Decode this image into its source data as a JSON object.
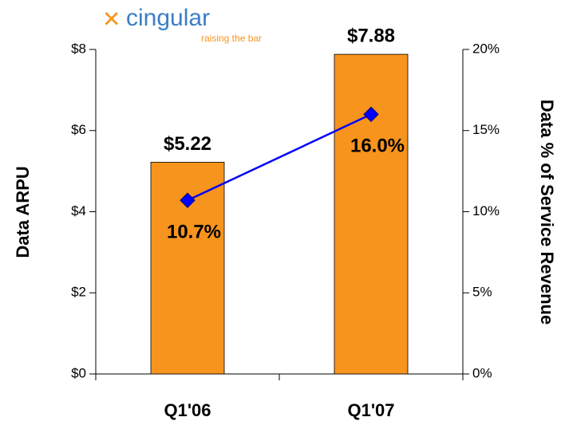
{
  "chart_data": {
    "type": "bar",
    "logo": {
      "name": "cingular",
      "tagline": "raising the bar"
    },
    "categories": [
      "Q1'06",
      "Q1'07"
    ],
    "series": [
      {
        "type": "bar",
        "color": "#f7941d",
        "values": [
          5.22,
          7.88
        ],
        "value_labels": [
          "$5.22",
          "$7.88"
        ]
      },
      {
        "type": "line",
        "axis": "y2",
        "color": "#0000ff",
        "values": [
          10.7,
          16.0
        ],
        "value_labels": [
          "10.7%",
          "16.0%"
        ]
      }
    ],
    "ylabel": "Data ARPU",
    "y2label": "Data % of Service Revenue",
    "ylim": [
      0,
      8
    ],
    "yticks": [
      {
        "value": 0,
        "label": "$0"
      },
      {
        "value": 2,
        "label": "$2"
      },
      {
        "value": 4,
        "label": "$4"
      },
      {
        "value": 6,
        "label": "$6"
      },
      {
        "value": 8,
        "label": "$8"
      }
    ],
    "y2lim": [
      0,
      20
    ],
    "y2ticks": [
      {
        "value": 0,
        "label": "0%"
      },
      {
        "value": 5,
        "label": "5%"
      },
      {
        "value": 10,
        "label": "10%"
      },
      {
        "value": 15,
        "label": "15%"
      },
      {
        "value": 20,
        "label": "20%"
      }
    ],
    "grid": false
  }
}
